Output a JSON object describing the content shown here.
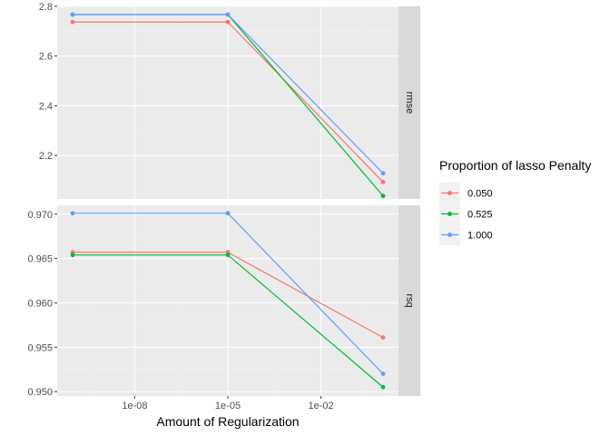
{
  "chart_data": {
    "type": "line",
    "xlabel": "Amount of Regularization",
    "x_scale": "log10",
    "x_ticks": [
      {
        "value": 1e-08,
        "label": "1e-08"
      },
      {
        "value": 1e-05,
        "label": "1e-05"
      },
      {
        "value": 0.01,
        "label": "1e-02"
      }
    ],
    "x": [
      1e-10,
      1e-05,
      1
    ],
    "legend": {
      "title": "Proportion of lasso Penalty",
      "position": "right"
    },
    "series_colors": [
      "#F8766D",
      "#00BA38",
      "#619CFF"
    ],
    "panels": [
      {
        "name": "rmse",
        "strip": "rmse",
        "ylim": [
          2.025,
          2.8
        ],
        "y_ticks": [
          {
            "value": 2.2,
            "label": "2.2"
          },
          {
            "value": 2.4,
            "label": "2.4"
          },
          {
            "value": 2.6,
            "label": "2.6"
          },
          {
            "value": 2.8,
            "label": "2.8"
          }
        ],
        "series": [
          {
            "name": "0.050",
            "values": [
              2.737,
              2.737,
              2.093
            ]
          },
          {
            "name": "0.525",
            "values": [
              2.767,
              2.767,
              2.037
            ]
          },
          {
            "name": "1.000",
            "values": [
              2.767,
              2.767,
              2.128
            ]
          }
        ]
      },
      {
        "name": "rsq",
        "strip": "rsq",
        "ylim": [
          0.9495,
          0.971
        ],
        "y_ticks": [
          {
            "value": 0.95,
            "label": "0.950"
          },
          {
            "value": 0.955,
            "label": "0.955"
          },
          {
            "value": 0.96,
            "label": "0.960"
          },
          {
            "value": 0.965,
            "label": "0.965"
          },
          {
            "value": 0.97,
            "label": "0.970"
          }
        ],
        "series": [
          {
            "name": "0.050",
            "values": [
              0.9657,
              0.9657,
              0.9561
            ]
          },
          {
            "name": "0.525",
            "values": [
              0.9654,
              0.9654,
              0.9505
            ]
          },
          {
            "name": "1.000",
            "values": [
              0.9701,
              0.9701,
              0.952
            ]
          }
        ]
      }
    ]
  }
}
